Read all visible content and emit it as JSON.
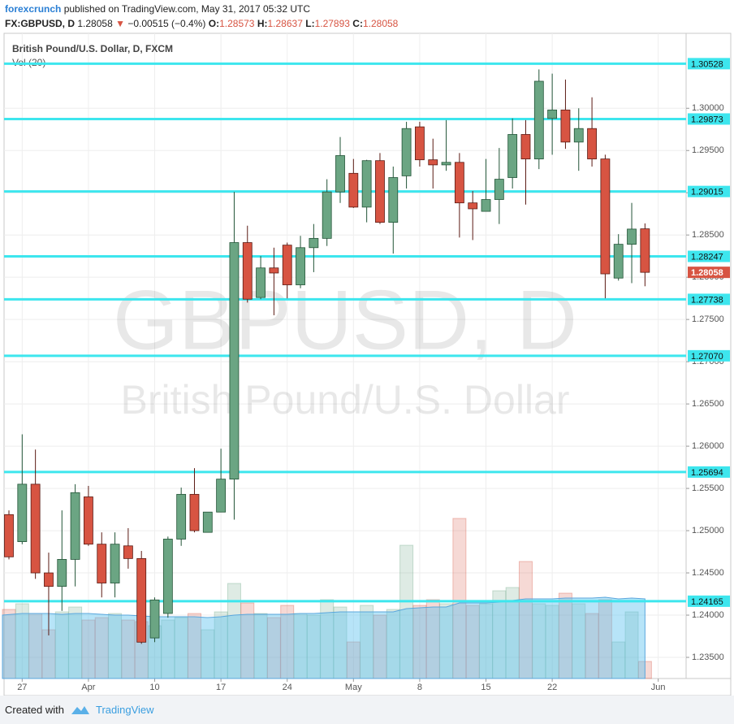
{
  "header": {
    "user": "forexcrunch",
    "published": "published on TradingView.com, May 31, 2017 05:32 UTC",
    "symbol": "FX:GBPUSD, D",
    "arrow": "▼",
    "change": "−0.00515 (−0.4%)",
    "ohlc_labels": [
      "O:",
      "H:",
      "L:",
      "C:"
    ]
  },
  "footer": {
    "created": "Created with",
    "brand": "TradingView"
  },
  "chart_data": {
    "type": "candlestick",
    "title": "British Pound/U.S. Dollar, D, FXCM",
    "indicator": "Vol (20)",
    "watermark": [
      "GBPUSD, D",
      "British Pound/U.S. Dollar"
    ],
    "x": [
      "2017-03-24",
      "2017-03-27",
      "2017-03-28",
      "2017-03-29",
      "2017-03-30",
      "2017-03-31",
      "2017-04-03",
      "2017-04-04",
      "2017-04-05",
      "2017-04-06",
      "2017-04-07",
      "2017-04-10",
      "2017-04-11",
      "2017-04-12",
      "2017-04-13",
      "2017-04-14",
      "2017-04-17",
      "2017-04-18",
      "2017-04-19",
      "2017-04-20",
      "2017-04-21",
      "2017-04-24",
      "2017-04-25",
      "2017-04-26",
      "2017-04-27",
      "2017-04-28",
      "2017-05-01",
      "2017-05-02",
      "2017-05-03",
      "2017-05-04",
      "2017-05-05",
      "2017-05-08",
      "2017-05-09",
      "2017-05-10",
      "2017-05-11",
      "2017-05-12",
      "2017-05-15",
      "2017-05-16",
      "2017-05-17",
      "2017-05-18",
      "2017-05-19",
      "2017-05-22",
      "2017-05-23",
      "2017-05-24",
      "2017-05-25",
      "2017-05-26",
      "2017-05-29",
      "2017-05-30",
      "2017-05-31"
    ],
    "open": [
      1.2519,
      1.2487,
      1.2555,
      1.245,
      1.2434,
      1.2466,
      1.254,
      1.2484,
      1.2438,
      1.2482,
      1.2467,
      1.2373,
      1.2402,
      1.249,
      1.2543,
      1.2498,
      1.2522,
      1.2561,
      1.2841,
      1.2776,
      1.2811,
      1.2838,
      1.2791,
      1.2835,
      1.2846,
      1.2901,
      1.2923,
      1.2883,
      1.2938,
      1.2865,
      1.292,
      1.2978,
      1.2939,
      1.2933,
      1.2936,
      1.2888,
      1.2878,
      1.2892,
      1.2918,
      1.2969,
      1.294,
      1.2988,
      1.2998,
      1.296,
      1.2976,
      1.294,
      1.2799,
      1.2839,
      1.28573
    ],
    "high": [
      1.2524,
      1.2614,
      1.2596,
      1.2474,
      1.2524,
      1.2555,
      1.2553,
      1.2498,
      1.2498,
      1.2503,
      1.2476,
      1.2421,
      1.2493,
      1.2551,
      1.2574,
      1.2522,
      1.2597,
      1.2901,
      1.2861,
      1.2825,
      1.2835,
      1.2841,
      1.2849,
      1.2863,
      1.2916,
      1.2966,
      1.294,
      1.2939,
      1.2947,
      1.2931,
      1.2984,
      1.2984,
      1.2964,
      1.2986,
      1.2947,
      1.2902,
      1.294,
      1.2953,
      1.2988,
      1.2986,
      1.3046,
      1.3041,
      1.3034,
      1.3,
      1.3013,
      1.2945,
      1.2851,
      1.2888,
      1.28637
    ],
    "low": [
      1.2466,
      1.2484,
      1.2443,
      1.2376,
      1.2405,
      1.2434,
      1.2482,
      1.2421,
      1.2421,
      1.2455,
      1.2366,
      1.2368,
      1.2397,
      1.2482,
      1.2498,
      1.2498,
      1.2522,
      1.2513,
      1.277,
      1.2774,
      1.2755,
      1.2775,
      1.2787,
      1.2806,
      1.2837,
      1.2888,
      1.2882,
      1.2865,
      1.2863,
      1.2828,
      1.2905,
      1.2931,
      1.2905,
      1.2926,
      1.2847,
      1.2844,
      1.2878,
      1.2863,
      1.2905,
      1.2886,
      1.2928,
      1.2945,
      1.2952,
      1.2926,
      1.2931,
      1.2775,
      1.2796,
      1.2793,
      1.27893
    ],
    "close": [
      1.2469,
      1.2555,
      1.245,
      1.2434,
      1.2466,
      1.2545,
      1.2484,
      1.2438,
      1.2484,
      1.2467,
      1.2368,
      1.2418,
      1.249,
      1.2543,
      1.25,
      1.2522,
      1.2561,
      1.2841,
      1.2774,
      1.2811,
      1.2805,
      1.2791,
      1.2835,
      1.2846,
      1.2901,
      1.2944,
      1.2883,
      1.2938,
      1.2865,
      1.2918,
      1.2976,
      1.2939,
      1.2933,
      1.2936,
      1.2888,
      1.2881,
      1.2892,
      1.2916,
      1.2969,
      1.294,
      1.3032,
      1.2998,
      1.296,
      1.2976,
      1.294,
      1.2804,
      1.2839,
      1.2857,
      1.28058
    ],
    "colors": {
      "up": "#6ba583",
      "down": "#d75442",
      "up_wick": "#225437",
      "down_wick": "#5b1a13",
      "level": "#3de6ee",
      "volume_ma": "#5fc3f0"
    },
    "volume": [
      85,
      92,
      80,
      60,
      82,
      88,
      72,
      75,
      80,
      72,
      70,
      65,
      72,
      75,
      80,
      60,
      82,
      117,
      93,
      80,
      75,
      90,
      80,
      78,
      97,
      88,
      45,
      90,
      78,
      85,
      164,
      90,
      97,
      92,
      197,
      90,
      92,
      108,
      112,
      144,
      92,
      90,
      105,
      92,
      80,
      97,
      45,
      82,
      21
    ],
    "volume_ma": [
      78,
      80,
      80,
      80,
      79,
      80,
      80,
      79,
      78,
      78,
      77,
      76,
      76,
      76,
      76,
      75,
      76,
      78,
      79,
      79,
      79,
      79,
      80,
      80,
      81,
      82,
      82,
      82,
      82,
      82,
      86,
      87,
      88,
      88,
      93,
      93,
      93,
      94,
      96,
      98,
      98,
      98,
      99,
      99,
      99,
      100,
      98,
      99,
      98
    ],
    "volume_lim": [
      0,
      240
    ],
    "levels": {
      "values": [
        1.30528,
        1.29873,
        1.29015,
        1.28247,
        1.27738,
        1.2707,
        1.25694,
        1.24165
      ],
      "value_labels": [
        "1.30528",
        "1.29873",
        "1.29015",
        "1.28247",
        "1.27738",
        "1.27070",
        "1.25694",
        "1.24165"
      ]
    },
    "ylim": [
      1.2325,
      1.3082
    ],
    "yticks": [
      {
        "value": 1.235,
        "label": "1.23500"
      },
      {
        "value": 1.24,
        "label": "1.24000"
      },
      {
        "value": 1.245,
        "label": "1.24500"
      },
      {
        "value": 1.25,
        "label": "1.25000"
      },
      {
        "value": 1.255,
        "label": "1.25500"
      },
      {
        "value": 1.26,
        "label": "1.26000"
      },
      {
        "value": 1.265,
        "label": "1.26500"
      },
      {
        "value": 1.27,
        "label": "1.27000"
      },
      {
        "value": 1.275,
        "label": "1.27500"
      },
      {
        "value": 1.28,
        "label": "1.28000"
      },
      {
        "value": 1.285,
        "label": "1.28500"
      },
      {
        "value": 1.29,
        "label": "1.29000"
      },
      {
        "value": 1.295,
        "label": "1.29500"
      },
      {
        "value": 1.3,
        "label": "1.30000"
      }
    ],
    "xticks": [
      {
        "value": "2017-03-27",
        "label": "27"
      },
      {
        "value": "2017-04-03",
        "label": "Apr"
      },
      {
        "value": "2017-04-10",
        "label": "10"
      },
      {
        "value": "2017-04-17",
        "label": "17"
      },
      {
        "value": "2017-04-24",
        "label": "24"
      },
      {
        "value": "2017-05-01",
        "label": "May"
      },
      {
        "value": "2017-05-08",
        "label": "8"
      },
      {
        "value": "2017-05-15",
        "label": "15"
      },
      {
        "value": "2017-05-22",
        "label": "22"
      },
      {
        "value": "2017-06-01",
        "label": "Jun"
      }
    ],
    "grid": true
  }
}
